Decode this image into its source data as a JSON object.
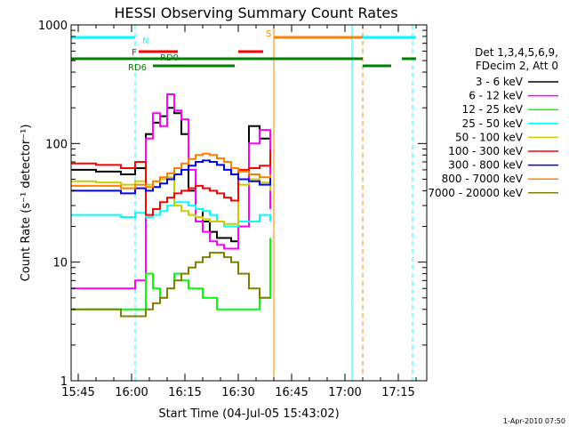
{
  "chart_data": {
    "type": "line",
    "title": "HESSI Observing Summary Count Rates",
    "xlabel": "Start Time (04-Jul-05 15:43:02)",
    "ylabel": "Count Rate (s⁻¹ detector⁻¹)",
    "y_scale": "log",
    "ylim": [
      1,
      1000
    ],
    "y_ticks": [
      "1",
      "10",
      "100",
      "1000"
    ],
    "xlim": [
      "15:43",
      "17:23"
    ],
    "x_ticks": [
      "15:45",
      "16:00",
      "16:15",
      "16:30",
      "16:45",
      "17:00",
      "17:15"
    ],
    "footer": "1-Apr-2010 07:50",
    "legend": {
      "position": "right",
      "header": [
        "Det 1,3,4,5,6,9,",
        "FDecim 2, Att 0"
      ],
      "entries": [
        {
          "label": "3 - 6 keV",
          "color": "#000000"
        },
        {
          "label": "6 - 12 keV",
          "color": "#ff00ff"
        },
        {
          "label": "12 - 25 keV",
          "color": "#00ff00"
        },
        {
          "label": "25 - 50 keV",
          "color": "#00ffff"
        },
        {
          "label": "50 - 100 keV",
          "color": "#cccc00"
        },
        {
          "label": "100 - 300 keV",
          "color": "#ff0000"
        },
        {
          "label": "300 - 800 keV",
          "color": "#0000ff"
        },
        {
          "label": "800 - 7000 keV",
          "color": "#ff8000"
        },
        {
          "label": "7000 - 20000 keV",
          "color": "#808000"
        }
      ]
    },
    "flag_bars": [
      {
        "label": "N",
        "color": "#00ffff",
        "row": 1,
        "segments": [
          [
            "15:43",
            "16:01"
          ],
          [
            "17:02",
            "17:20"
          ]
        ]
      },
      {
        "label": "S",
        "color": "#ff8000",
        "row": 1,
        "segments": [
          [
            "16:40",
            "17:05"
          ]
        ]
      },
      {
        "label": "F",
        "color": "#ff0000",
        "row": 2,
        "segments": [
          [
            "16:02",
            "16:13"
          ],
          [
            "16:30",
            "16:37"
          ]
        ]
      },
      {
        "label": "RD0",
        "color": "#008000",
        "row": 3,
        "segments": [
          [
            "15:43",
            "16:40"
          ],
          [
            "16:40",
            "17:05"
          ],
          [
            "17:16",
            "17:20"
          ]
        ]
      },
      {
        "label": "RD6",
        "color": "#008000",
        "row": 4,
        "segments": [
          [
            "16:06",
            "16:29"
          ],
          [
            "17:05",
            "17:13"
          ]
        ]
      }
    ],
    "vlines": [
      {
        "x": "15:43",
        "color": "#00ffff",
        "style": "solid"
      },
      {
        "x": "16:01",
        "color": "#00ffff",
        "style": "dashed"
      },
      {
        "x": "16:40",
        "color": "#ff8000",
        "style": "solid"
      },
      {
        "x": "17:02",
        "color": "#00ffff",
        "style": "solid"
      },
      {
        "x": "17:05",
        "color": "#ff8000",
        "style": "dashed"
      },
      {
        "x": "17:19",
        "color": "#00ffff",
        "style": "dashed"
      }
    ],
    "x": [
      "15:43",
      "15:50",
      "15:57",
      "16:01",
      "16:04",
      "16:06",
      "16:08",
      "16:10",
      "16:12",
      "16:14",
      "16:16",
      "16:18",
      "16:20",
      "16:22",
      "16:24",
      "16:26",
      "16:28",
      "16:30",
      "16:33",
      "16:36",
      "16:39"
    ],
    "series": [
      {
        "name": "3 - 6 keV",
        "color": "#000000",
        "values": [
          60,
          58,
          55,
          62,
          120,
          150,
          170,
          200,
          180,
          120,
          40,
          28,
          22,
          18,
          16,
          16,
          15,
          20,
          140,
          110,
          30
        ]
      },
      {
        "name": "6 - 12 keV",
        "color": "#ff00ff",
        "values": [
          6,
          6,
          6,
          7,
          110,
          180,
          140,
          260,
          190,
          160,
          60,
          22,
          18,
          15,
          14,
          13,
          13,
          20,
          100,
          130,
          28
        ]
      },
      {
        "name": "12 - 25 keV",
        "color": "#00ff00",
        "values": [
          4,
          4,
          4,
          4,
          8,
          6,
          5,
          6,
          8,
          7,
          6,
          6,
          5,
          5,
          4,
          4,
          4,
          4,
          4,
          5,
          16
        ]
      },
      {
        "name": "25 - 50 keV",
        "color": "#00ffff",
        "values": [
          25,
          25,
          24,
          26,
          24,
          25,
          27,
          30,
          32,
          32,
          30,
          28,
          27,
          25,
          22,
          20,
          20,
          22,
          22,
          25,
          22
        ]
      },
      {
        "name": "50 - 100 keV",
        "color": "#cccc00",
        "values": [
          48,
          47,
          45,
          48,
          45,
          48,
          50,
          52,
          30,
          27,
          25,
          24,
          23,
          22,
          22,
          21,
          21,
          45,
          50,
          47,
          40
        ]
      },
      {
        "name": "100 - 300 keV",
        "color": "#ff0000",
        "values": [
          68,
          66,
          62,
          70,
          25,
          28,
          32,
          35,
          38,
          40,
          42,
          44,
          42,
          40,
          38,
          35,
          33,
          60,
          62,
          65,
          88
        ]
      },
      {
        "name": "300 - 800 keV",
        "color": "#0000ff",
        "values": [
          40,
          40,
          38,
          42,
          40,
          43,
          46,
          50,
          55,
          60,
          65,
          70,
          72,
          70,
          66,
          60,
          55,
          50,
          48,
          45,
          55
        ]
      },
      {
        "name": "800 - 7000 keV",
        "color": "#ff8000",
        "values": [
          44,
          44,
          42,
          45,
          43,
          48,
          52,
          56,
          62,
          68,
          74,
          80,
          82,
          80,
          75,
          70,
          62,
          58,
          55,
          52,
          55
        ]
      },
      {
        "name": "7000 - 20000 keV",
        "color": "#808000",
        "values": [
          4,
          4,
          3.5,
          3.5,
          4,
          4.5,
          5,
          6,
          7,
          8,
          9,
          10,
          11,
          12,
          12,
          11,
          10,
          8,
          6,
          5,
          5
        ]
      }
    ]
  }
}
